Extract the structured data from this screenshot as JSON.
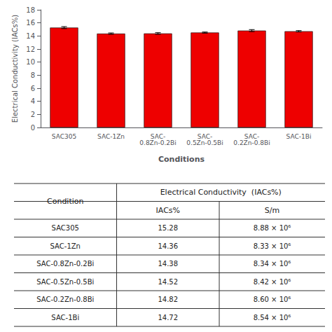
{
  "chart_data": {
    "type": "bar",
    "categories": [
      "SAC305",
      "SAC-1Zn",
      "SAC-\n0.8Zn-0.2Bi",
      "SAC-\n0.5Zn-0.5Bi",
      "SAC-\n0.2Zn-0.8Bi",
      "SAC-1Bi"
    ],
    "values": [
      15.28,
      14.36,
      14.38,
      14.52,
      14.82,
      14.72
    ],
    "errors": [
      0.15,
      0.1,
      0.12,
      0.08,
      0.15,
      0.1
    ],
    "color": "#EE0000",
    "ylabel": "Electrical Conductivity (IACs%)",
    "xlabel": "Conditions",
    "ylim": [
      0,
      18
    ],
    "yticks": [
      0,
      2,
      4,
      6,
      8,
      10,
      12,
      14,
      16,
      18
    ],
    "grid": false,
    "table": {
      "row_header": "Condition",
      "group_header": "Electrical Conductivity  (IACs%)",
      "columns": [
        "IACs%",
        "S/m"
      ],
      "conditions": [
        "SAC305",
        "SAC-1Zn",
        "SAC-0.8Zn-0.2Bi",
        "SAC-0.5Zn-0.5Bi",
        "SAC-0.2Zn-0.8Bi",
        "SAC-1Bi"
      ],
      "iacs": [
        "15.28",
        "14.36",
        "14.38",
        "14.52",
        "14.82",
        "14.72"
      ],
      "sm": [
        "8.88 × 10⁶",
        "8.33 × 10⁶",
        "8.34 × 10⁶",
        "8.42 × 10⁶",
        "8.60 × 10⁶",
        "8.54 × 10⁶"
      ]
    }
  }
}
